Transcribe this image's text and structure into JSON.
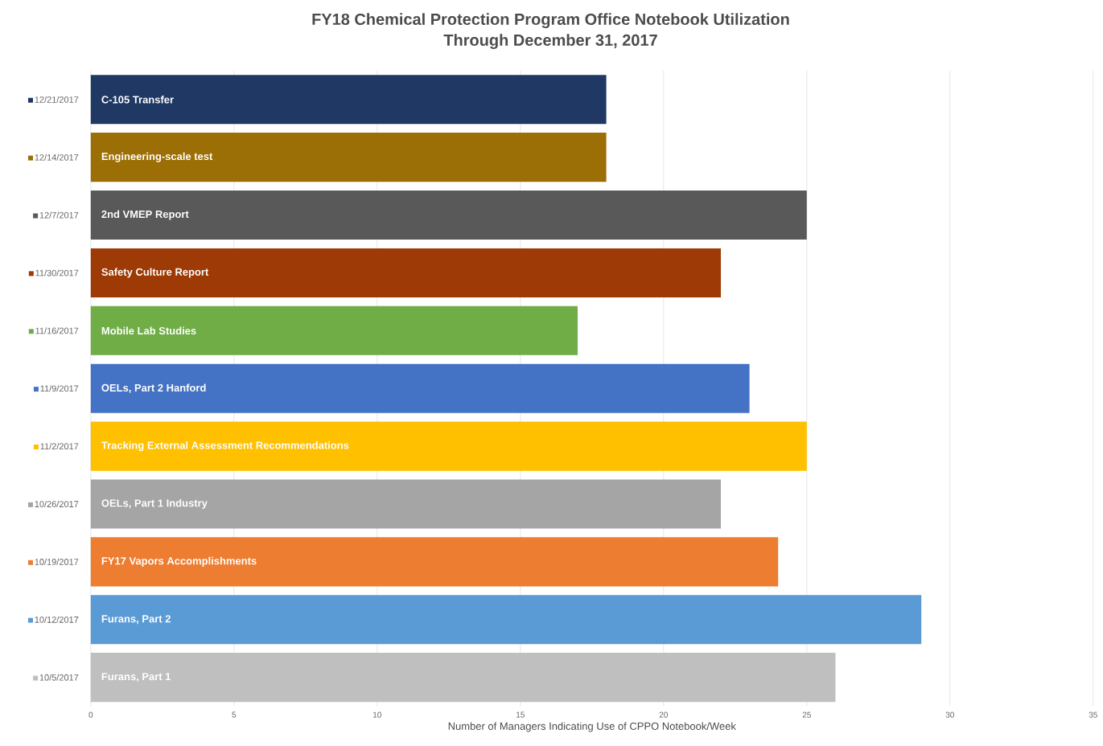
{
  "chart_data": {
    "type": "bar",
    "orientation": "horizontal",
    "title": "FY18 Chemical Protection Program Office Notebook Utilization\nThrough December 31, 2017",
    "xlabel": "Number of Managers Indicating Use of CPPO Notebook/Week",
    "categories": [
      "12/21/2017",
      "12/14/2017",
      "12/7/2017",
      "11/30/2017",
      "11/16/2017",
      "11/9/2017",
      "11/2/2017",
      "10/26/2017",
      "10/19/2017",
      "10/12/2017",
      "10/5/2017"
    ],
    "values": [
      18,
      18,
      25,
      22,
      17,
      23,
      25,
      22,
      24,
      29,
      26
    ],
    "colors": [
      "#203864",
      "#9c6f06",
      "#595959",
      "#9e3a05",
      "#70ad47",
      "#4472c4",
      "#ffc000",
      "#a5a5a5",
      "#ed7d31",
      "#5b9bd5",
      "#bfbfbf"
    ],
    "xlim": [
      0,
      35
    ],
    "xticks": [
      0,
      5,
      10,
      15,
      20,
      25,
      30,
      35
    ],
    "grid": "x",
    "annotations": [
      {
        "text": "C-105 Transfer",
        "y": "12/21/2017"
      },
      {
        "text": "Engineering-scale test",
        "y": "12/14/2017"
      },
      {
        "text": "2nd VMEP Report",
        "y": "12/7/2017"
      },
      {
        "text": "Safety Culture Report",
        "y": "11/30/2017"
      },
      {
        "text": "Mobile Lab Studies",
        "y": "11/16/2017"
      },
      {
        "text": "OELs, Part 2 Hanford",
        "y": "11/9/2017"
      },
      {
        "text": "Tracking External Assessment Recommendations",
        "y": "11/2/2017"
      },
      {
        "text": "OELs, Part 1 Industry",
        "y": "10/26/2017"
      },
      {
        "text": "FY17 Vapors Accomplishments",
        "y": "10/19/2017"
      },
      {
        "text": "Furans, Part 2",
        "y": "10/12/2017"
      },
      {
        "text": "Furans, Part 1",
        "y": "10/5/2017"
      }
    ]
  }
}
